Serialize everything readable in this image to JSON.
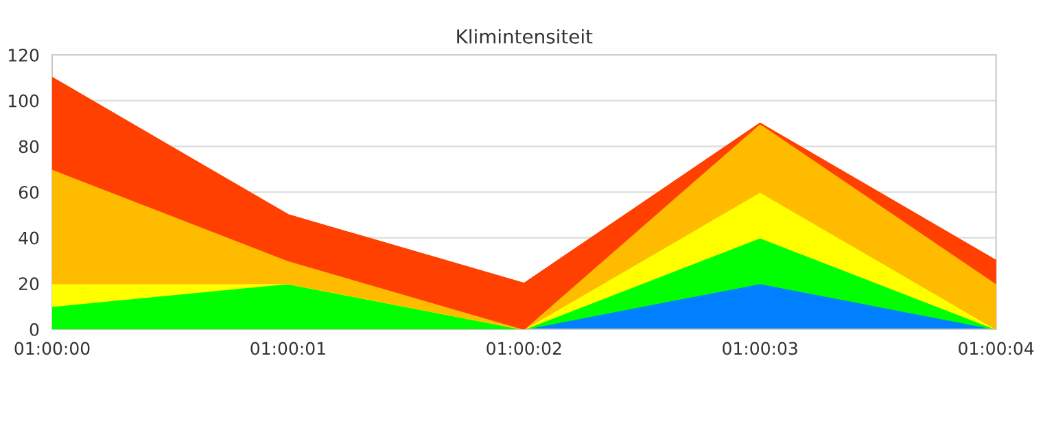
{
  "chart_data": {
    "type": "area",
    "title": "Klimintensiteit",
    "stacked": true,
    "categories": [
      "01:00:00",
      "01:00:01",
      "01:00:02",
      "01:00:03",
      "01:00:04"
    ],
    "series": [
      {
        "color": "#0080ff",
        "values": [
          0,
          0,
          0,
          20,
          0
        ]
      },
      {
        "color": "#00ff00",
        "values": [
          10,
          20,
          0,
          20,
          0
        ]
      },
      {
        "color": "#ffff00",
        "values": [
          10,
          0,
          0,
          20,
          0
        ]
      },
      {
        "color": "#ffbb00",
        "values": [
          50,
          10,
          0,
          30,
          20
        ]
      },
      {
        "color": "#ff4000",
        "values": [
          40,
          20,
          20,
          0,
          10
        ]
      }
    ],
    "ylim": [
      0,
      120
    ],
    "yticks": [
      0,
      20,
      40,
      60,
      80,
      100,
      120
    ],
    "grid": "y"
  }
}
